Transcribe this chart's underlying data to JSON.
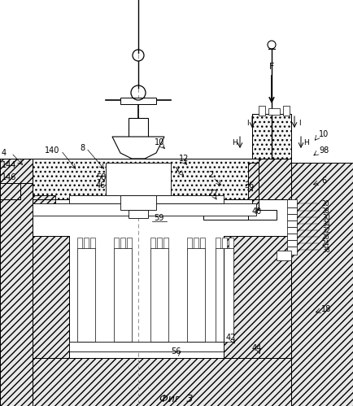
{
  "title": "Фиг. 3",
  "background": "#ffffff",
  "line_color": "#000000",
  "labels_right_stack": [
    "20",
    "28",
    "30",
    "34",
    "32",
    "26",
    "24",
    "38"
  ],
  "fs": 7.0
}
